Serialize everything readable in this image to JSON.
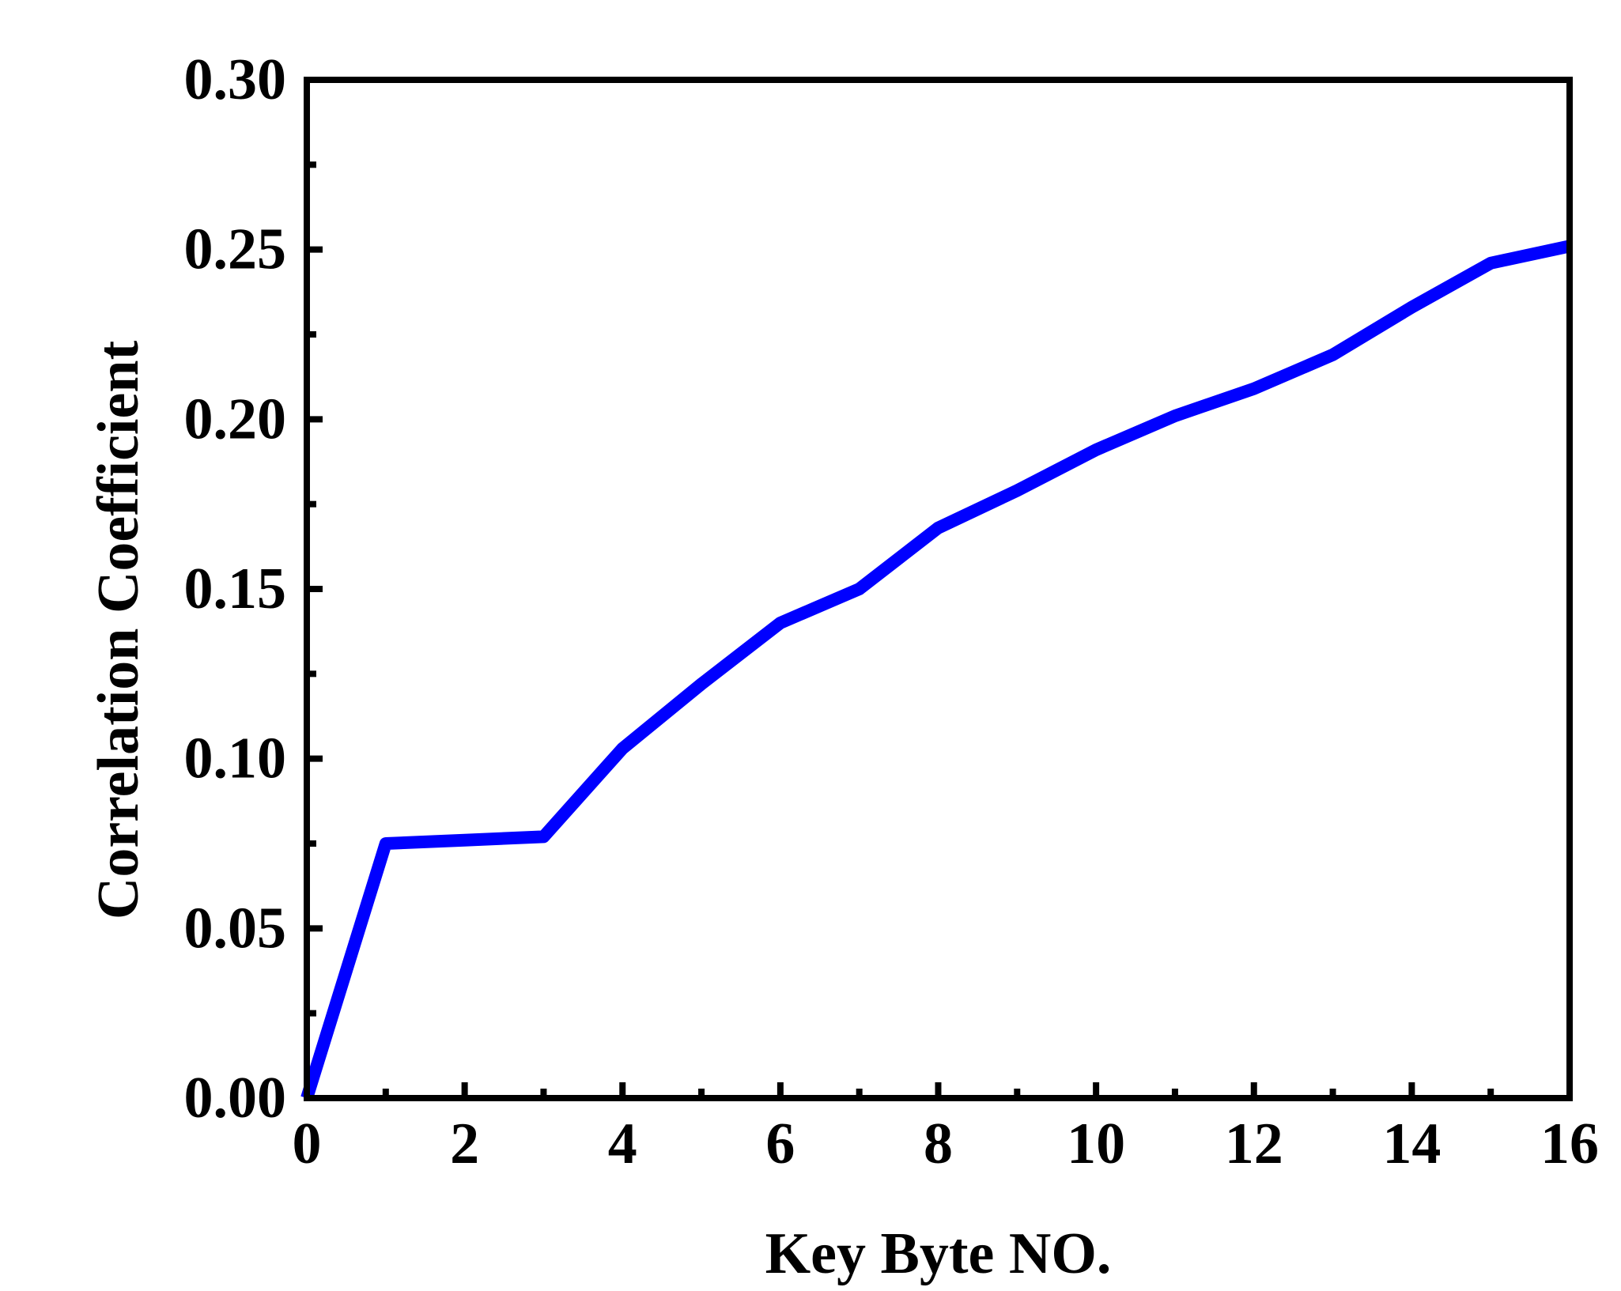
{
  "chart_data": {
    "type": "line",
    "title": "",
    "xlabel": "Key Byte NO.",
    "ylabel": "Correlation Coefficient",
    "xlim": [
      0,
      16
    ],
    "ylim": [
      0,
      0.3
    ],
    "xticks": [
      0,
      2,
      4,
      6,
      8,
      10,
      12,
      14,
      16
    ],
    "xtick_labels": [
      "0",
      "2",
      "4",
      "6",
      "8",
      "10",
      "12",
      "14",
      "16"
    ],
    "yticks": [
      0,
      0.05,
      0.1,
      0.15,
      0.2,
      0.25,
      0.3
    ],
    "ytick_labels": [
      "0.00",
      "0.05",
      "0.10",
      "0.15",
      "0.20",
      "0.25",
      "0.30"
    ],
    "grid": false,
    "legend": "none",
    "series": [
      {
        "color": "#0000ff",
        "x": [
          0,
          1,
          2,
          3,
          4,
          5,
          6,
          7,
          8,
          9,
          10,
          11,
          12,
          13,
          14,
          15,
          16
        ],
        "y": [
          0.0,
          0.075,
          0.076,
          0.077,
          0.103,
          0.122,
          0.14,
          0.15,
          0.168,
          0.179,
          0.191,
          0.201,
          0.209,
          0.219,
          0.233,
          0.246,
          0.251
        ]
      }
    ]
  }
}
